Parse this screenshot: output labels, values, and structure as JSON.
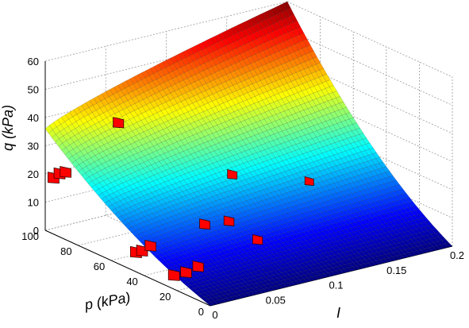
{
  "chart_data": {
    "type": "surface3d",
    "title": "",
    "colormap": "jet",
    "grid": true,
    "axes": {
      "x": {
        "label": "I",
        "range": [
          0,
          0.2
        ],
        "ticks": [
          "0",
          "0.05",
          "0.1",
          "0.15",
          "0.2"
        ]
      },
      "y": {
        "label": "p (kPa)",
        "range": [
          0,
          100
        ],
        "ticks": [
          "0",
          "20",
          "40",
          "60",
          "80",
          "100"
        ]
      },
      "z": {
        "label": "q (kPa)",
        "range": [
          0,
          60
        ],
        "ticks": [
          "0",
          "10",
          "20",
          "30",
          "40",
          "50",
          "60"
        ]
      }
    },
    "surface": {
      "description_values": [
        {
          "I": 0,
          "p": 100,
          "q": 36
        },
        {
          "I": 0.1,
          "p": 100,
          "q": 50
        },
        {
          "I": 0.2,
          "p": 100,
          "q": 60
        },
        {
          "I": 0.2,
          "p": 0,
          "q": 0
        },
        {
          "I": 0,
          "p": 0,
          "q": 0
        }
      ]
    },
    "markers": [
      {
        "I": 0.0,
        "p": 95,
        "q": 20
      },
      {
        "I": 0.005,
        "p": 95,
        "q": 21
      },
      {
        "I": 0.01,
        "p": 95,
        "q": 21
      },
      {
        "I": 0.04,
        "p": 85,
        "q": 38
      },
      {
        "I": 0.0,
        "p": 22,
        "q": 5
      },
      {
        "I": 0.01,
        "p": 22,
        "q": 5
      },
      {
        "I": 0.02,
        "p": 22,
        "q": 6
      },
      {
        "I": 0.0,
        "p": 45,
        "q": 7
      },
      {
        "I": 0.005,
        "p": 45,
        "q": 7
      },
      {
        "I": 0.012,
        "p": 45,
        "q": 8
      },
      {
        "I": 0.05,
        "p": 40,
        "q": 13
      },
      {
        "I": 0.07,
        "p": 40,
        "q": 12
      },
      {
        "I": 0.1,
        "p": 60,
        "q": 20
      },
      {
        "I": 0.08,
        "p": 30,
        "q": 7
      },
      {
        "I": 0.15,
        "p": 50,
        "q": 15
      }
    ]
  }
}
